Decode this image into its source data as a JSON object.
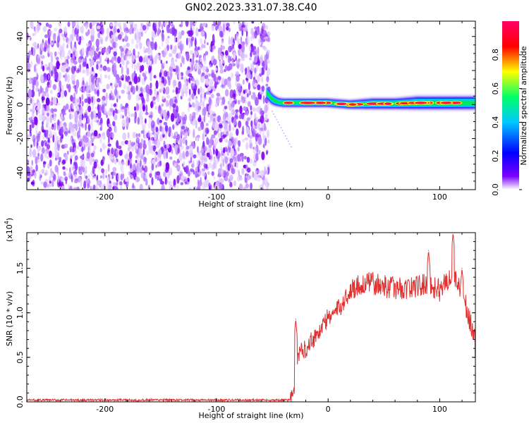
{
  "title": "GN02.2023.331.07.38.C40",
  "chart_data": [
    {
      "type": "heatmap",
      "xlabel": "Height of straight line (km)",
      "ylabel": "Frequency (Hz)",
      "xlim": [
        -270,
        132
      ],
      "ylim": [
        -50,
        49
      ],
      "xticks": [
        -200,
        -100,
        0,
        100
      ],
      "xtick_labels": [
        "-200",
        "-100",
        "0",
        "100"
      ],
      "yticks": [
        -40,
        -20,
        0,
        20,
        40
      ],
      "ytick_labels": [
        "-40",
        "-20",
        "0",
        "20",
        "40"
      ],
      "noise_region_x": [
        -270,
        -53
      ],
      "signal_band": {
        "x": [
          -55,
          -50,
          -45,
          -40,
          -30,
          -20,
          -10,
          0,
          20,
          40,
          60,
          80,
          100,
          120,
          132
        ],
        "center_hz": [
          7,
          3,
          1.5,
          1,
          1,
          1,
          1,
          1,
          0,
          0.5,
          0.5,
          1,
          1,
          1,
          1
        ],
        "halfwidth_hz": [
          3,
          2.5,
          2,
          2,
          2,
          2,
          2,
          2,
          2,
          2.5,
          2.5,
          3,
          3,
          3,
          3
        ]
      },
      "colorbar": {
        "label": "Normalized spectral amplitude",
        "range": [
          0,
          1
        ],
        "ticks": [
          0.0,
          0.2,
          0.4,
          0.6,
          0.8
        ],
        "tick_labels": [
          "0.0",
          "0.2",
          "0.4",
          "0.6",
          "0.8"
        ],
        "colormap": [
          "#ffffff",
          "#7a00ff",
          "#0000ff",
          "#00c8ff",
          "#00ff66",
          "#ffff00",
          "#ff0000",
          "#ff0066"
        ]
      },
      "grid": false
    },
    {
      "type": "line",
      "xlabel": "Height of straight line (km)",
      "ylabel": "SNR (10 * v/v)",
      "y_multiplier_label": "(x10",
      "y_multiplier_exp": "4",
      "y_multiplier_close": ")",
      "xlim": [
        -270,
        132
      ],
      "ylim": [
        0,
        1.9
      ],
      "xticks": [
        -200,
        -100,
        0,
        100
      ],
      "xtick_labels": [
        "-200",
        "-100",
        "0",
        "100"
      ],
      "yticks": [
        0.0,
        0.5,
        1.0,
        1.5
      ],
      "ytick_labels": [
        "0.0",
        "0.5",
        "1.0",
        "1.5"
      ],
      "series": [
        {
          "color": "#e03030",
          "envelope": {
            "x": [
              -270,
              -100,
              -34,
              -31,
              -28,
              -25,
              -20,
              -15,
              -10,
              -5,
              0,
              5,
              10,
              15,
              20,
              25,
              30,
              40,
              50,
              60,
              70,
              80,
              90,
              100,
              105,
              110,
              115,
              118,
              120,
              125,
              130,
              132
            ],
            "y": [
              0.02,
              0.02,
              0.02,
              0.08,
              0.5,
              0.55,
              0.6,
              0.7,
              0.75,
              0.85,
              0.95,
              1.0,
              1.05,
              1.15,
              1.25,
              1.3,
              1.32,
              1.33,
              1.3,
              1.28,
              1.27,
              1.3,
              1.32,
              1.25,
              1.35,
              1.4,
              1.35,
              1.3,
              1.25,
              1.0,
              0.8,
              0.6
            ]
          },
          "peaks": [
            {
              "x": -29,
              "y": 0.93
            },
            {
              "x": 40,
              "y": 1.45
            },
            {
              "x": 90,
              "y": 1.7
            },
            {
              "x": 112,
              "y": 1.9
            },
            {
              "x": 120,
              "y": 1.5
            }
          ]
        }
      ],
      "grid": false
    }
  ]
}
